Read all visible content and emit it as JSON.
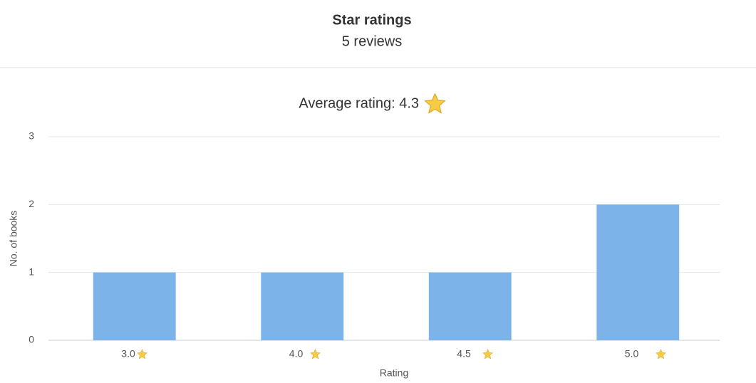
{
  "header": {
    "title": "Star ratings",
    "subtitle": "5 reviews"
  },
  "chart_data": {
    "type": "bar",
    "title": "Average rating: 4.3",
    "x_label": "Rating",
    "y_label": "No. of books",
    "categories": [
      "3.0",
      "4.0",
      "4.5",
      "5.0"
    ],
    "values": [
      1,
      1,
      1,
      2
    ],
    "color": "#7cb4ea",
    "ylim": [
      0,
      3
    ],
    "yticks": [
      0,
      1,
      2,
      3
    ],
    "grid": true
  }
}
